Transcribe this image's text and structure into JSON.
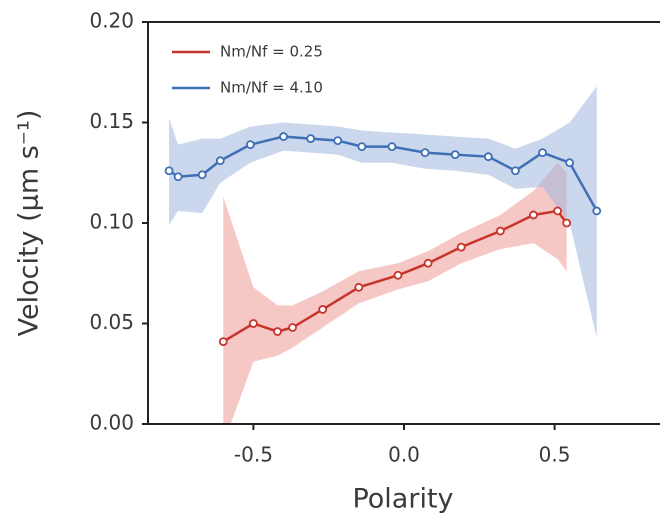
{
  "chart_data": {
    "type": "line",
    "xlabel": "Polarity",
    "ylabel": "Velocity (μm s⁻¹)",
    "xlim": [
      -0.85,
      0.85
    ],
    "ylim": [
      0,
      0.2
    ],
    "xticks": [
      {
        "value": -0.5,
        "label": "-0.5"
      },
      {
        "value": 0,
        "label": "0.0"
      },
      {
        "value": 0.5,
        "label": "0.5"
      }
    ],
    "yticks": [
      {
        "value": 0,
        "label": "0.00"
      },
      {
        "value": 0.05,
        "label": "0.05"
      },
      {
        "value": 0.1,
        "label": "0.10"
      },
      {
        "value": 0.15,
        "label": "0.15"
      },
      {
        "value": 0.2,
        "label": "0.20"
      }
    ],
    "legend": "upper left",
    "series": [
      {
        "name": "Nm/Nf = 0.25",
        "color": "#c8342c",
        "band_color": "#ee9b96",
        "x": [
          -0.6,
          -0.5,
          -0.42,
          -0.37,
          -0.27,
          -0.15,
          -0.02,
          0.08,
          0.19,
          0.32,
          0.43,
          0.51,
          0.54
        ],
        "values": [
          0.041,
          0.05,
          0.046,
          0.048,
          0.057,
          0.068,
          0.074,
          0.08,
          0.088,
          0.096,
          0.104,
          0.106,
          0.1
        ],
        "upper": [
          0.113,
          0.068,
          0.059,
          0.059,
          0.066,
          0.076,
          0.08,
          0.086,
          0.095,
          0.104,
          0.116,
          0.13,
          0.125
        ],
        "lower": [
          -0.01,
          0.031,
          0.034,
          0.038,
          0.048,
          0.06,
          0.067,
          0.071,
          0.08,
          0.087,
          0.09,
          0.082,
          0.076
        ]
      },
      {
        "name": "Nm/Nf = 4.10",
        "color": "#3f6fb5",
        "band_color": "#9fb7dc",
        "x": [
          -0.78,
          -0.75,
          -0.67,
          -0.61,
          -0.51,
          -0.4,
          -0.31,
          -0.22,
          -0.14,
          -0.04,
          0.07,
          0.17,
          0.28,
          0.37,
          0.46,
          0.55,
          0.64
        ],
        "values": [
          0.126,
          0.123,
          0.124,
          0.131,
          0.139,
          0.143,
          0.142,
          0.141,
          0.138,
          0.138,
          0.135,
          0.134,
          0.133,
          0.126,
          0.135,
          0.13,
          0.106
        ],
        "upper": [
          0.152,
          0.139,
          0.142,
          0.142,
          0.148,
          0.15,
          0.149,
          0.148,
          0.146,
          0.145,
          0.144,
          0.143,
          0.142,
          0.137,
          0.142,
          0.15,
          0.168
        ],
        "lower": [
          0.099,
          0.106,
          0.105,
          0.12,
          0.13,
          0.136,
          0.135,
          0.134,
          0.13,
          0.13,
          0.127,
          0.126,
          0.124,
          0.117,
          0.118,
          0.1,
          0.043
        ]
      }
    ]
  }
}
